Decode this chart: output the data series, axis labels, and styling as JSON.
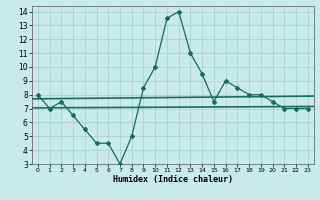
{
  "x": [
    0,
    1,
    2,
    3,
    4,
    5,
    6,
    7,
    8,
    9,
    10,
    11,
    12,
    13,
    14,
    15,
    16,
    17,
    18,
    19,
    20,
    21,
    22,
    23
  ],
  "y_main": [
    8.0,
    7.0,
    7.5,
    6.5,
    5.5,
    4.5,
    4.5,
    3.0,
    5.0,
    8.5,
    10.0,
    13.5,
    14.0,
    11.0,
    9.5,
    7.5,
    9.0,
    8.5,
    8.0,
    8.0,
    7.5,
    7.0,
    7.0,
    7.0
  ],
  "y_upper_start": 7.7,
  "y_upper_end": 7.9,
  "y_lower_start": 7.05,
  "y_lower_end": 7.15,
  "line_color": "#1a6b5a",
  "bg_color": "#c8eaea",
  "grid_color": "#a8cccc",
  "xlabel": "Humidex (Indice chaleur)",
  "ylim": [
    3,
    14.4
  ],
  "xlim": [
    -0.5,
    23.5
  ],
  "yticks": [
    3,
    4,
    5,
    6,
    7,
    8,
    9,
    10,
    11,
    12,
    13,
    14
  ],
  "xticks": [
    0,
    1,
    2,
    3,
    4,
    5,
    6,
    7,
    8,
    9,
    10,
    11,
    12,
    13,
    14,
    15,
    16,
    17,
    18,
    19,
    20,
    21,
    22,
    23
  ]
}
